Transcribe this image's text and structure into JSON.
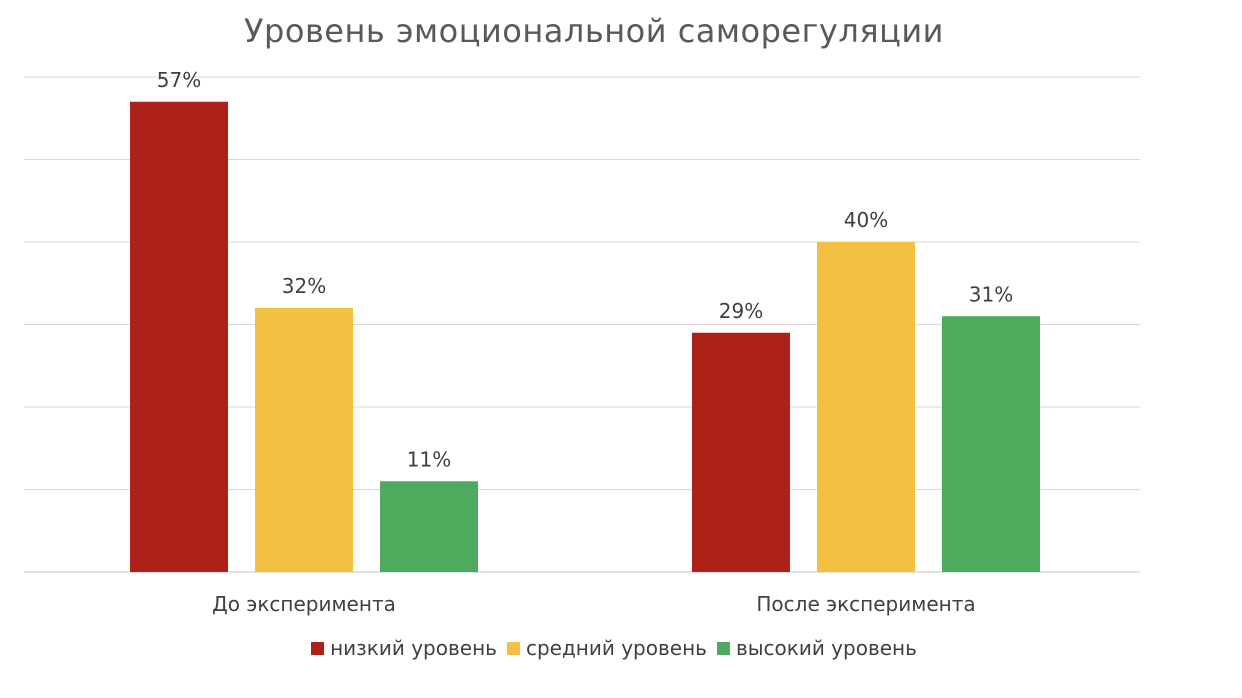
{
  "chart_data": {
    "type": "bar",
    "title": "Уровень эмоциональной саморегуляции",
    "xlabel": "",
    "ylabel": "",
    "categories": [
      "До эксперимента",
      "После эксперимента"
    ],
    "series": [
      {
        "name": "низкий уровень",
        "values": [
          57,
          29
        ],
        "color": "#ad2118"
      },
      {
        "name": "средний уровень",
        "values": [
          32,
          40
        ],
        "color": "#f4c042"
      },
      {
        "name": "высокий уровень",
        "values": [
          11,
          31
        ],
        "color": "#4eab5d"
      }
    ],
    "value_suffix": "%",
    "ylim": [
      0,
      60
    ],
    "gridlines": [
      0,
      10,
      20,
      30,
      40,
      50,
      60
    ],
    "grid": true,
    "legend_position": "bottom",
    "gridline_color": "#d9d9d9"
  }
}
